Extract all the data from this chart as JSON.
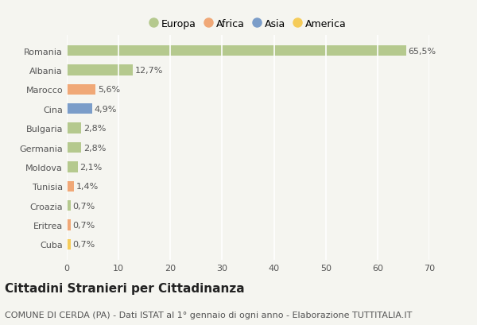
{
  "categories": [
    "Romania",
    "Albania",
    "Marocco",
    "Cina",
    "Bulgaria",
    "Germania",
    "Moldova",
    "Tunisia",
    "Croazia",
    "Eritrea",
    "Cuba"
  ],
  "values": [
    65.5,
    12.7,
    5.6,
    4.9,
    2.8,
    2.8,
    2.1,
    1.4,
    0.7,
    0.7,
    0.7
  ],
  "labels": [
    "65,5%",
    "12,7%",
    "5,6%",
    "4,9%",
    "2,8%",
    "2,8%",
    "2,1%",
    "1,4%",
    "0,7%",
    "0,7%",
    "0,7%"
  ],
  "colors": [
    "#b5c98e",
    "#b5c98e",
    "#f0a877",
    "#7b9dc9",
    "#b5c98e",
    "#b5c98e",
    "#b5c98e",
    "#f0a877",
    "#b5c98e",
    "#f0a877",
    "#f5cc5a"
  ],
  "legend_labels": [
    "Europa",
    "Africa",
    "Asia",
    "America"
  ],
  "legend_colors": [
    "#b5c98e",
    "#f0a877",
    "#7b9dc9",
    "#f5cc5a"
  ],
  "title": "Cittadini Stranieri per Cittadinanza",
  "subtitle": "COMUNE DI CERDA (PA) - Dati ISTAT al 1° gennaio di ogni anno - Elaborazione TUTTITALIA.IT",
  "xlim": [
    0,
    70
  ],
  "xticks": [
    0,
    10,
    20,
    30,
    40,
    50,
    60,
    70
  ],
  "background_color": "#f5f5f0",
  "grid_color": "#ffffff",
  "bar_height": 0.55,
  "title_fontsize": 11,
  "subtitle_fontsize": 8,
  "label_fontsize": 8,
  "tick_fontsize": 8,
  "legend_fontsize": 9
}
